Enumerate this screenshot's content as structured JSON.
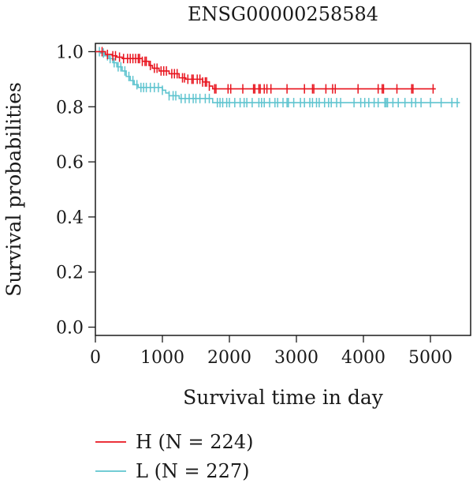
{
  "chart_data": {
    "type": "line",
    "title": "ENSG00000258584",
    "xlabel": "Survival time in day",
    "ylabel": "Survival probabilities",
    "xlim": [
      0,
      5600
    ],
    "ylim": [
      -0.03,
      1.03
    ],
    "x_ticks": [
      0,
      1000,
      2000,
      3000,
      4000,
      5000
    ],
    "y_ticks": [
      0.0,
      0.2,
      0.4,
      0.6,
      0.8,
      1.0
    ],
    "x_tick_labels": [
      "0",
      "1000",
      "2000",
      "3000",
      "4000",
      "5000"
    ],
    "y_tick_labels": [
      "0.0",
      "0.2",
      "0.4",
      "0.6",
      "0.8",
      "1.0"
    ],
    "grid": false,
    "legend_position": "bottom",
    "series": [
      {
        "name": "H (N = 224)",
        "color": "#e8141e",
        "steps": [
          [
            0,
            1.0
          ],
          [
            150,
            0.99
          ],
          [
            250,
            0.985
          ],
          [
            320,
            0.98
          ],
          [
            400,
            0.975
          ],
          [
            700,
            0.965
          ],
          [
            800,
            0.95
          ],
          [
            850,
            0.94
          ],
          [
            950,
            0.93
          ],
          [
            1100,
            0.92
          ],
          [
            1250,
            0.905
          ],
          [
            1350,
            0.9
          ],
          [
            1600,
            0.89
          ],
          [
            1700,
            0.875
          ],
          [
            1750,
            0.865
          ],
          [
            5080,
            0.865
          ]
        ],
        "censor_x": [
          100,
          180,
          260,
          300,
          360,
          420,
          480,
          520,
          560,
          600,
          640,
          660,
          700,
          740,
          760,
          820,
          880,
          920,
          980,
          1020,
          1060,
          1140,
          1180,
          1220,
          1300,
          1330,
          1380,
          1440,
          1460,
          1520,
          1560,
          1600,
          1640,
          1660,
          1700,
          1780,
          1800,
          1980,
          2020,
          2200,
          2360,
          2380,
          2440,
          2460,
          2520,
          2560,
          2620,
          2860,
          3120,
          3240,
          3260,
          3440,
          3540,
          3580,
          3920,
          4220,
          4280,
          4300,
          4500,
          4720,
          4740,
          5040
        ]
      },
      {
        "name": "L (N = 227)",
        "color": "#5fc4cf",
        "steps": [
          [
            0,
            1.0
          ],
          [
            80,
            0.995
          ],
          [
            140,
            0.985
          ],
          [
            200,
            0.975
          ],
          [
            260,
            0.96
          ],
          [
            320,
            0.945
          ],
          [
            400,
            0.93
          ],
          [
            460,
            0.91
          ],
          [
            520,
            0.895
          ],
          [
            580,
            0.88
          ],
          [
            640,
            0.87
          ],
          [
            1000,
            0.86
          ],
          [
            1050,
            0.85
          ],
          [
            1100,
            0.84
          ],
          [
            1250,
            0.83
          ],
          [
            1750,
            0.815
          ],
          [
            5440,
            0.815
          ]
        ],
        "censor_x": [
          60,
          120,
          180,
          220,
          280,
          340,
          380,
          440,
          500,
          560,
          620,
          680,
          720,
          760,
          820,
          880,
          940,
          1000,
          1100,
          1160,
          1200,
          1280,
          1340,
          1400,
          1460,
          1500,
          1560,
          1640,
          1700,
          1820,
          1860,
          1900,
          1960,
          2000,
          2080,
          2160,
          2220,
          2260,
          2340,
          2440,
          2480,
          2520,
          2600,
          2680,
          2720,
          2800,
          2860,
          2880,
          2960,
          3060,
          3120,
          3200,
          3240,
          3300,
          3340,
          3420,
          3480,
          3520,
          3600,
          3660,
          3860,
          3960,
          4020,
          4080,
          4160,
          4220,
          4320,
          4340,
          4360,
          4440,
          4520,
          4620,
          4720,
          4780,
          4860,
          5000,
          5160,
          5320,
          5400
        ]
      }
    ]
  }
}
